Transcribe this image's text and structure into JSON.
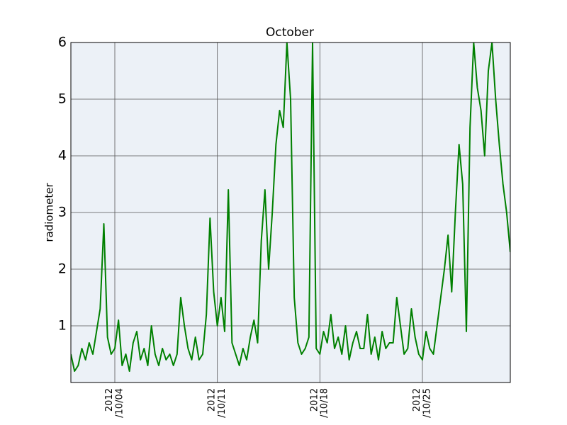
{
  "chart_data": {
    "type": "line",
    "title": "October",
    "y_label": "radiometer",
    "color": "#008000",
    "grid": true,
    "xlim": [
      "2012-10-01T00:00",
      "2012-10-31T00:00"
    ],
    "xticks": [
      {
        "value": "2012-10-04T00:00",
        "label": "2012\n/10/04"
      },
      {
        "value": "2012-10-11T00:00",
        "label": "2012\n/10/11"
      },
      {
        "value": "2012-10-18T00:00",
        "label": "2012\n/10/18"
      },
      {
        "value": "2012-10-25T00:00",
        "label": "2012\n/10/25"
      }
    ],
    "ylim": [
      0,
      6
    ],
    "yticks": [
      1,
      2,
      3,
      4,
      5,
      6
    ],
    "x": [
      "2012-10-01T00:00",
      "2012-10-01T06:00",
      "2012-10-01T12:00",
      "2012-10-01T18:00",
      "2012-10-02T00:00",
      "2012-10-02T06:00",
      "2012-10-02T12:00",
      "2012-10-02T18:00",
      "2012-10-03T00:00",
      "2012-10-03T06:00",
      "2012-10-03T12:00",
      "2012-10-03T18:00",
      "2012-10-04T00:00",
      "2012-10-04T06:00",
      "2012-10-04T12:00",
      "2012-10-04T18:00",
      "2012-10-05T00:00",
      "2012-10-05T06:00",
      "2012-10-05T12:00",
      "2012-10-05T18:00",
      "2012-10-06T00:00",
      "2012-10-06T06:00",
      "2012-10-06T12:00",
      "2012-10-06T18:00",
      "2012-10-07T00:00",
      "2012-10-07T06:00",
      "2012-10-07T12:00",
      "2012-10-07T18:00",
      "2012-10-08T00:00",
      "2012-10-08T06:00",
      "2012-10-08T12:00",
      "2012-10-08T18:00",
      "2012-10-09T00:00",
      "2012-10-09T06:00",
      "2012-10-09T12:00",
      "2012-10-09T18:00",
      "2012-10-10T00:00",
      "2012-10-10T06:00",
      "2012-10-10T12:00",
      "2012-10-10T18:00",
      "2012-10-11T00:00",
      "2012-10-11T06:00",
      "2012-10-11T12:00",
      "2012-10-11T18:00",
      "2012-10-12T00:00",
      "2012-10-12T06:00",
      "2012-10-12T12:00",
      "2012-10-12T18:00",
      "2012-10-13T00:00",
      "2012-10-13T06:00",
      "2012-10-13T12:00",
      "2012-10-13T18:00",
      "2012-10-14T00:00",
      "2012-10-14T06:00",
      "2012-10-14T12:00",
      "2012-10-14T18:00",
      "2012-10-15T00:00",
      "2012-10-15T06:00",
      "2012-10-15T12:00",
      "2012-10-15T18:00",
      "2012-10-16T00:00",
      "2012-10-16T06:00",
      "2012-10-16T12:00",
      "2012-10-16T18:00",
      "2012-10-17T00:00",
      "2012-10-17T06:00",
      "2012-10-17T12:00",
      "2012-10-17T18:00",
      "2012-10-18T00:00",
      "2012-10-18T06:00",
      "2012-10-18T12:00",
      "2012-10-18T18:00",
      "2012-10-19T00:00",
      "2012-10-19T06:00",
      "2012-10-19T12:00",
      "2012-10-19T18:00",
      "2012-10-20T00:00",
      "2012-10-20T06:00",
      "2012-10-20T12:00",
      "2012-10-20T18:00",
      "2012-10-21T00:00",
      "2012-10-21T06:00",
      "2012-10-21T12:00",
      "2012-10-21T18:00",
      "2012-10-22T00:00",
      "2012-10-22T06:00",
      "2012-10-22T12:00",
      "2012-10-22T18:00",
      "2012-10-23T00:00",
      "2012-10-23T06:00",
      "2012-10-23T12:00",
      "2012-10-23T18:00",
      "2012-10-24T00:00",
      "2012-10-24T06:00",
      "2012-10-24T12:00",
      "2012-10-24T18:00",
      "2012-10-25T00:00",
      "2012-10-25T06:00",
      "2012-10-25T12:00",
      "2012-10-25T18:00",
      "2012-10-26T00:00",
      "2012-10-26T06:00",
      "2012-10-26T12:00",
      "2012-10-26T18:00",
      "2012-10-27T00:00",
      "2012-10-27T06:00",
      "2012-10-27T12:00",
      "2012-10-27T18:00",
      "2012-10-28T00:00",
      "2012-10-28T06:00",
      "2012-10-28T12:00",
      "2012-10-28T18:00",
      "2012-10-29T00:00",
      "2012-10-29T06:00",
      "2012-10-29T12:00",
      "2012-10-29T18:00",
      "2012-10-30T00:00",
      "2012-10-30T06:00",
      "2012-10-30T12:00",
      "2012-10-30T18:00",
      "2012-10-31T00:00"
    ],
    "values": [
      0.5,
      0.2,
      0.3,
      0.6,
      0.4,
      0.7,
      0.5,
      0.9,
      1.3,
      2.8,
      0.8,
      0.5,
      0.6,
      1.1,
      0.3,
      0.5,
      0.2,
      0.7,
      0.9,
      0.4,
      0.6,
      0.3,
      1.0,
      0.5,
      0.3,
      0.6,
      0.4,
      0.5,
      0.3,
      0.5,
      1.5,
      1.0,
      0.6,
      0.4,
      0.8,
      0.4,
      0.5,
      1.2,
      2.9,
      1.6,
      1.0,
      1.5,
      0.9,
      3.4,
      0.7,
      0.5,
      0.3,
      0.6,
      0.4,
      0.8,
      1.1,
      0.7,
      2.5,
      3.4,
      2.0,
      3.0,
      4.2,
      4.8,
      4.5,
      6.0,
      5.0,
      1.5,
      0.7,
      0.5,
      0.6,
      0.8,
      6.0,
      0.6,
      0.5,
      0.9,
      0.7,
      1.2,
      0.6,
      0.8,
      0.5,
      1.0,
      0.4,
      0.7,
      0.9,
      0.6,
      0.6,
      1.2,
      0.5,
      0.8,
      0.4,
      0.9,
      0.6,
      0.7,
      0.7,
      1.5,
      1.0,
      0.5,
      0.6,
      1.3,
      0.8,
      0.5,
      0.4,
      0.9,
      0.6,
      0.5,
      1.0,
      1.5,
      2.0,
      2.6,
      1.6,
      3.0,
      4.2,
      3.5,
      0.9,
      4.5,
      6.0,
      5.2,
      4.8,
      4.0,
      5.5,
      6.0,
      5.0,
      4.2,
      3.5,
      3.0,
      2.3
    ]
  }
}
